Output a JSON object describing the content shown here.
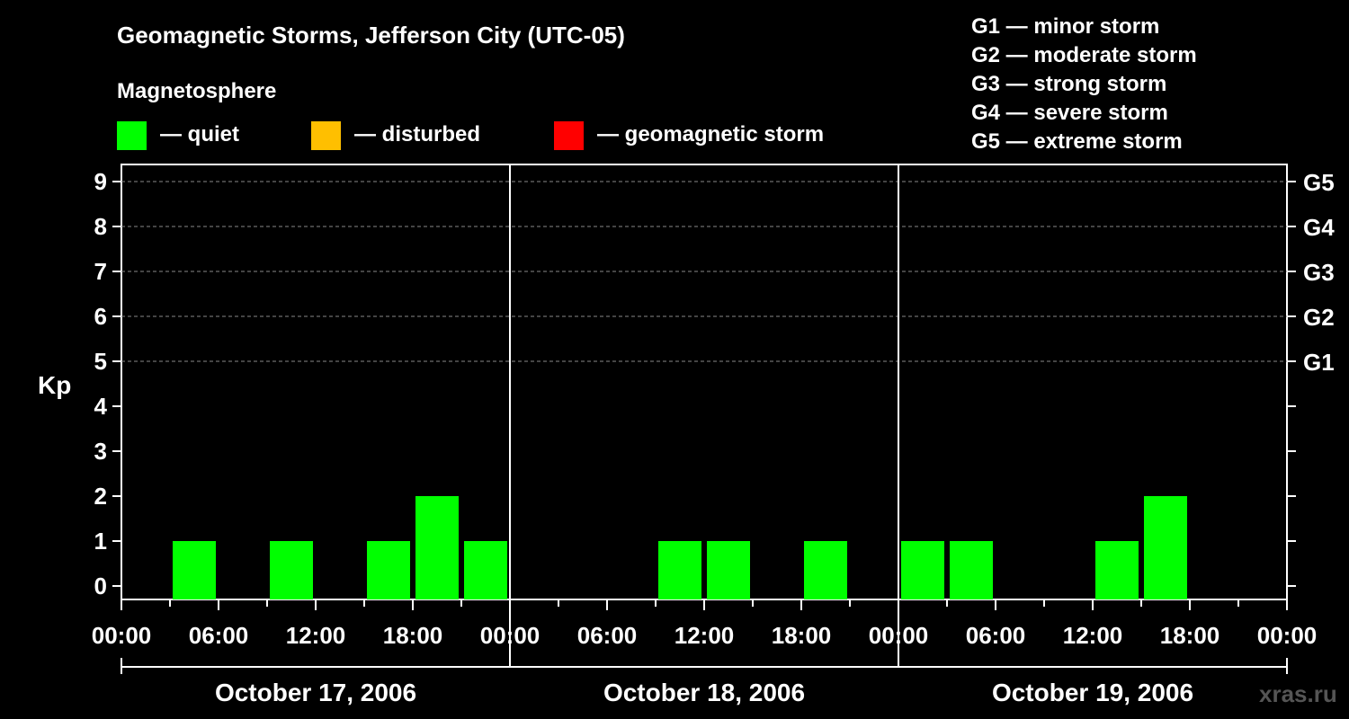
{
  "title": "Geomagnetic Storms, Jefferson City (UTC-05)",
  "legend": {
    "heading": "Magnetosphere",
    "items": [
      {
        "label": "— quiet",
        "color": "#00ff00"
      },
      {
        "label": "— disturbed",
        "color": "#ffbf00"
      },
      {
        "label": "— geomagnetic storm",
        "color": "#ff0000"
      }
    ]
  },
  "scale_key": [
    "G1 — minor storm",
    "G2 — moderate storm",
    "G3 — strong storm",
    "G4 — severe storm",
    "G5 — extreme storm"
  ],
  "watermark": "xras.ru",
  "chart_data": {
    "type": "bar",
    "ylabel": "Kp",
    "ylim": [
      0,
      9
    ],
    "y_ticks": [
      0,
      1,
      2,
      3,
      4,
      5,
      6,
      7,
      8,
      9
    ],
    "g_levels": [
      {
        "label": "G1",
        "kp": 5
      },
      {
        "label": "G2",
        "kp": 6
      },
      {
        "label": "G3",
        "kp": 7
      },
      {
        "label": "G4",
        "kp": 8
      },
      {
        "label": "G5",
        "kp": 9
      }
    ],
    "x_tick_labels": [
      "00:00",
      "06:00",
      "12:00",
      "18:00",
      "00:00",
      "06:00",
      "12:00",
      "18:00",
      "00:00",
      "06:00",
      "12:00",
      "18:00",
      "00:00"
    ],
    "days": [
      "October 17, 2006",
      "October 18, 2006",
      "October 19, 2006"
    ],
    "interval_hours": 3,
    "values": [
      0,
      1,
      0,
      1,
      0,
      1,
      2,
      1,
      0,
      0,
      0,
      1,
      1,
      0,
      1,
      0,
      1,
      1,
      0,
      0,
      1,
      2,
      0,
      0
    ],
    "color": "#00ff00"
  }
}
